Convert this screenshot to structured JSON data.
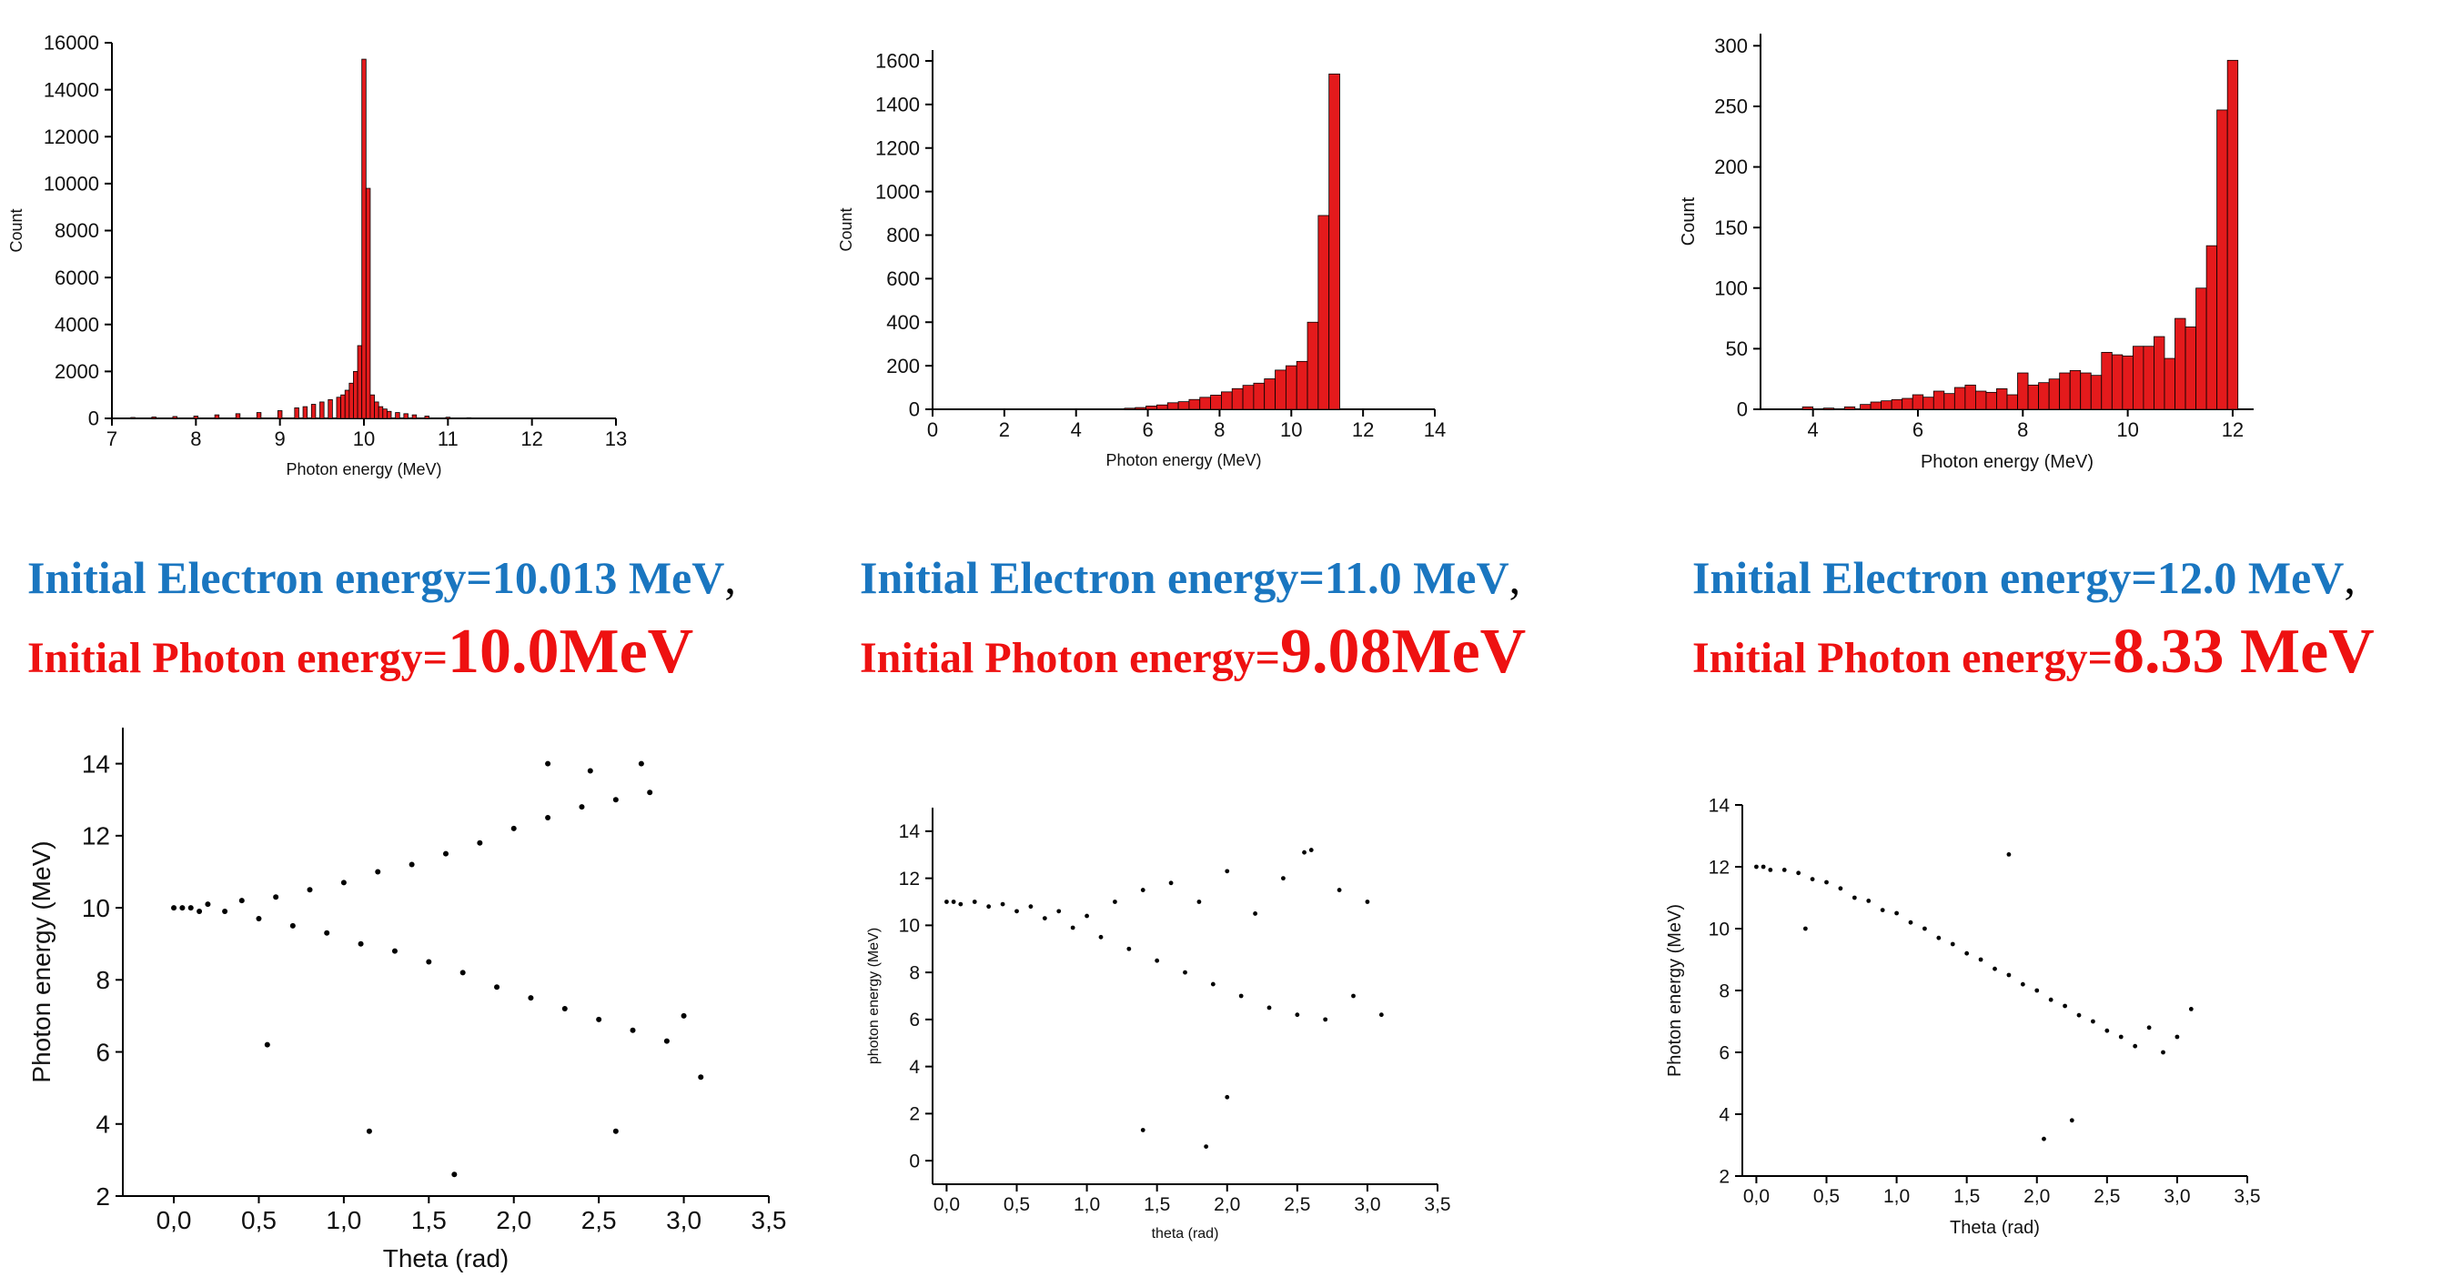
{
  "histograms": [
    {
      "id": "hist-1",
      "chart_data": {
        "type": "bar",
        "xlabel": "Photon energy (MeV)",
        "ylabel": "Count",
        "xlim": [
          7,
          13
        ],
        "ylim": [
          0,
          16000
        ],
        "xticks": [
          "7",
          "8",
          "9",
          "10",
          "11",
          "12",
          "13"
        ],
        "yticks": [
          "0",
          "2000",
          "4000",
          "6000",
          "8000",
          "10000",
          "12000",
          "14000",
          "16000"
        ],
        "bin_width": 0.05,
        "x": [
          7.0,
          7.25,
          7.5,
          7.75,
          8.0,
          8.25,
          8.5,
          8.75,
          9.0,
          9.2,
          9.3,
          9.4,
          9.5,
          9.6,
          9.7,
          9.75,
          9.8,
          9.85,
          9.9,
          9.95,
          10.0,
          10.05,
          10.1,
          10.15,
          10.2,
          10.25,
          10.3,
          10.4,
          10.5,
          10.6,
          10.75,
          11.0,
          11.25,
          11.5
        ],
        "values": [
          20,
          40,
          60,
          80,
          100,
          150,
          200,
          250,
          330,
          450,
          500,
          600,
          700,
          800,
          900,
          1000,
          1200,
          1500,
          2000,
          3100,
          15300,
          9800,
          1000,
          700,
          500,
          400,
          300,
          250,
          200,
          150,
          100,
          50,
          30,
          20
        ]
      }
    },
    {
      "id": "hist-2",
      "chart_data": {
        "type": "bar",
        "xlabel": "Photon energy (MeV)",
        "ylabel": "Count",
        "xlim": [
          0,
          14
        ],
        "ylim": [
          0,
          1650
        ],
        "xticks": [
          "0",
          "2",
          "4",
          "6",
          "8",
          "10",
          "12",
          "14"
        ],
        "yticks": [
          "0",
          "200",
          "400",
          "600",
          "800",
          "1000",
          "1200",
          "1400",
          "1600"
        ],
        "bin_width": 0.3,
        "x": [
          2.2,
          3.7,
          5.5,
          5.8,
          6.1,
          6.4,
          6.7,
          7.0,
          7.3,
          7.6,
          7.9,
          8.2,
          8.5,
          8.8,
          9.1,
          9.4,
          9.7,
          10.0,
          10.3,
          10.6,
          10.9,
          11.2
        ],
        "values": [
          1,
          2,
          5,
          8,
          15,
          20,
          30,
          35,
          45,
          55,
          65,
          80,
          95,
          110,
          120,
          140,
          180,
          200,
          220,
          400,
          890,
          1540
        ]
      }
    },
    {
      "id": "hist-3",
      "chart_data": {
        "type": "bar",
        "xlabel": "Photon energy (MeV)",
        "ylabel": "Count",
        "xlim": [
          3,
          12.4
        ],
        "ylim": [
          0,
          310
        ],
        "xticks": [
          "4",
          "6",
          "8",
          "10",
          "12"
        ],
        "yticks": [
          "0",
          "50",
          "100",
          "150",
          "200",
          "250",
          "300"
        ],
        "bin_width": 0.2,
        "x": [
          3.9,
          4.3,
          4.7,
          5.0,
          5.2,
          5.4,
          5.6,
          5.8,
          6.0,
          6.2,
          6.4,
          6.6,
          6.8,
          7.0,
          7.2,
          7.4,
          7.6,
          7.8,
          8.0,
          8.2,
          8.4,
          8.6,
          8.8,
          9.0,
          9.2,
          9.4,
          9.6,
          9.8,
          10.0,
          10.2,
          10.4,
          10.6,
          10.8,
          11.0,
          11.2,
          11.4,
          11.6,
          11.8,
          12.0
        ],
        "values": [
          2,
          1,
          2,
          4,
          6,
          7,
          8,
          9,
          12,
          10,
          15,
          13,
          18,
          20,
          15,
          14,
          17,
          12,
          30,
          20,
          22,
          25,
          30,
          32,
          30,
          28,
          47,
          45,
          44,
          52,
          52,
          60,
          42,
          75,
          68,
          100,
          135,
          247,
          288
        ]
      }
    }
  ],
  "captions": [
    {
      "line1": "Initial Electron energy=10.013 MeV",
      "comma": ",",
      "line2_prefix": "Initial Photon energy=",
      "line2_value": "10.0MeV"
    },
    {
      "line1": "Initial Electron energy=11.0 MeV",
      "comma": ",",
      "line2_prefix": "Initial Photon energy=",
      "line2_value": "9.08MeV"
    },
    {
      "line1": "Initial Electron energy=12.0 MeV",
      "comma": ",",
      "line2_prefix": "Initial Photon energy=",
      "line2_value": "8.33 MeV"
    }
  ],
  "scatters": [
    {
      "id": "scatter-1",
      "chart_data": {
        "type": "scatter",
        "xlabel": "Theta (rad)",
        "ylabel": "Photon energy (MeV)",
        "xlim": [
          -0.3,
          3.5
        ],
        "ylim": [
          2,
          15
        ],
        "xticks": [
          "0,0",
          "0,5",
          "1,0",
          "1,5",
          "2,0",
          "2,5",
          "3,0",
          "3,5"
        ],
        "yticks": [
          "2",
          "4",
          "6",
          "8",
          "10",
          "12",
          "14"
        ],
        "x": [
          0.0,
          0.05,
          0.1,
          0.15,
          0.2,
          0.3,
          0.4,
          0.5,
          0.6,
          0.7,
          0.8,
          0.9,
          1.0,
          1.1,
          1.2,
          1.3,
          1.4,
          1.5,
          1.6,
          1.7,
          1.8,
          1.9,
          2.0,
          2.1,
          2.2,
          2.3,
          2.4,
          2.5,
          2.6,
          2.7,
          2.8,
          2.9,
          3.0,
          3.1,
          0.55,
          1.15,
          1.65,
          2.6,
          2.2,
          2.75,
          2.45
        ],
        "y": [
          10.0,
          10.0,
          10.0,
          9.9,
          10.1,
          9.9,
          10.2,
          9.7,
          10.3,
          9.5,
          10.5,
          9.3,
          10.7,
          9.0,
          11.0,
          8.8,
          11.2,
          8.5,
          11.5,
          8.2,
          11.8,
          7.8,
          12.2,
          7.5,
          12.5,
          7.2,
          12.8,
          6.9,
          13.0,
          6.6,
          13.2,
          6.3,
          7.0,
          5.3,
          6.2,
          3.8,
          2.6,
          3.8,
          14.0,
          14.0,
          13.8
        ]
      }
    },
    {
      "id": "scatter-2",
      "chart_data": {
        "type": "scatter",
        "xlabel": "theta (rad)",
        "ylabel": "photon energy (MeV)",
        "xlim": [
          -0.1,
          3.5
        ],
        "ylim": [
          -1,
          15
        ],
        "xticks": [
          "0,0",
          "0,5",
          "1,0",
          "1,5",
          "2,0",
          "2,5",
          "3,0",
          "3,5"
        ],
        "yticks": [
          "0",
          "2",
          "4",
          "6",
          "8",
          "10",
          "12",
          "14"
        ],
        "x": [
          0.0,
          0.05,
          0.1,
          0.2,
          0.3,
          0.4,
          0.5,
          0.6,
          0.7,
          0.8,
          0.9,
          1.0,
          1.1,
          1.2,
          1.3,
          1.4,
          1.5,
          1.6,
          1.7,
          1.8,
          1.9,
          2.0,
          2.1,
          2.2,
          2.3,
          2.4,
          2.5,
          2.6,
          2.7,
          2.8,
          2.9,
          3.0,
          3.1,
          1.4,
          1.85,
          2.55,
          2.0
        ],
        "y": [
          11.0,
          11.0,
          10.9,
          11.0,
          10.8,
          10.9,
          10.6,
          10.8,
          10.3,
          10.6,
          9.9,
          10.4,
          9.5,
          11.0,
          9.0,
          11.5,
          8.5,
          11.8,
          8.0,
          11.0,
          7.5,
          12.3,
          7.0,
          10.5,
          6.5,
          12.0,
          6.2,
          13.2,
          6.0,
          11.5,
          7.0,
          11.0,
          6.2,
          1.3,
          0.6,
          13.1,
          2.7
        ]
      }
    },
    {
      "id": "scatter-3",
      "chart_data": {
        "type": "scatter",
        "xlabel": "Theta (rad)",
        "ylabel": "Photon energy (MeV)",
        "xlim": [
          -0.1,
          3.5
        ],
        "ylim": [
          2,
          14
        ],
        "xticks": [
          "0,0",
          "0,5",
          "1,0",
          "1,5",
          "2,0",
          "2,5",
          "3,0",
          "3,5"
        ],
        "yticks": [
          "2",
          "4",
          "6",
          "8",
          "10",
          "12",
          "14"
        ],
        "x": [
          0.0,
          0.05,
          0.1,
          0.2,
          0.3,
          0.4,
          0.5,
          0.6,
          0.7,
          0.8,
          0.9,
          1.0,
          1.1,
          1.2,
          1.3,
          1.4,
          1.5,
          1.6,
          1.7,
          1.8,
          1.9,
          2.0,
          2.1,
          2.2,
          2.3,
          2.4,
          2.5,
          2.6,
          2.7,
          2.8,
          2.9,
          3.0,
          3.1,
          0.35,
          2.05,
          2.25,
          1.8
        ],
        "y": [
          12.0,
          12.0,
          11.9,
          11.9,
          11.8,
          11.6,
          11.5,
          11.3,
          11.0,
          10.9,
          10.6,
          10.5,
          10.2,
          10.0,
          9.7,
          9.5,
          9.2,
          9.0,
          8.7,
          8.5,
          8.2,
          8.0,
          7.7,
          7.5,
          7.2,
          7.0,
          6.7,
          6.5,
          6.2,
          6.8,
          6.0,
          6.5,
          7.4,
          10.0,
          3.2,
          3.8,
          12.4
        ]
      }
    }
  ]
}
